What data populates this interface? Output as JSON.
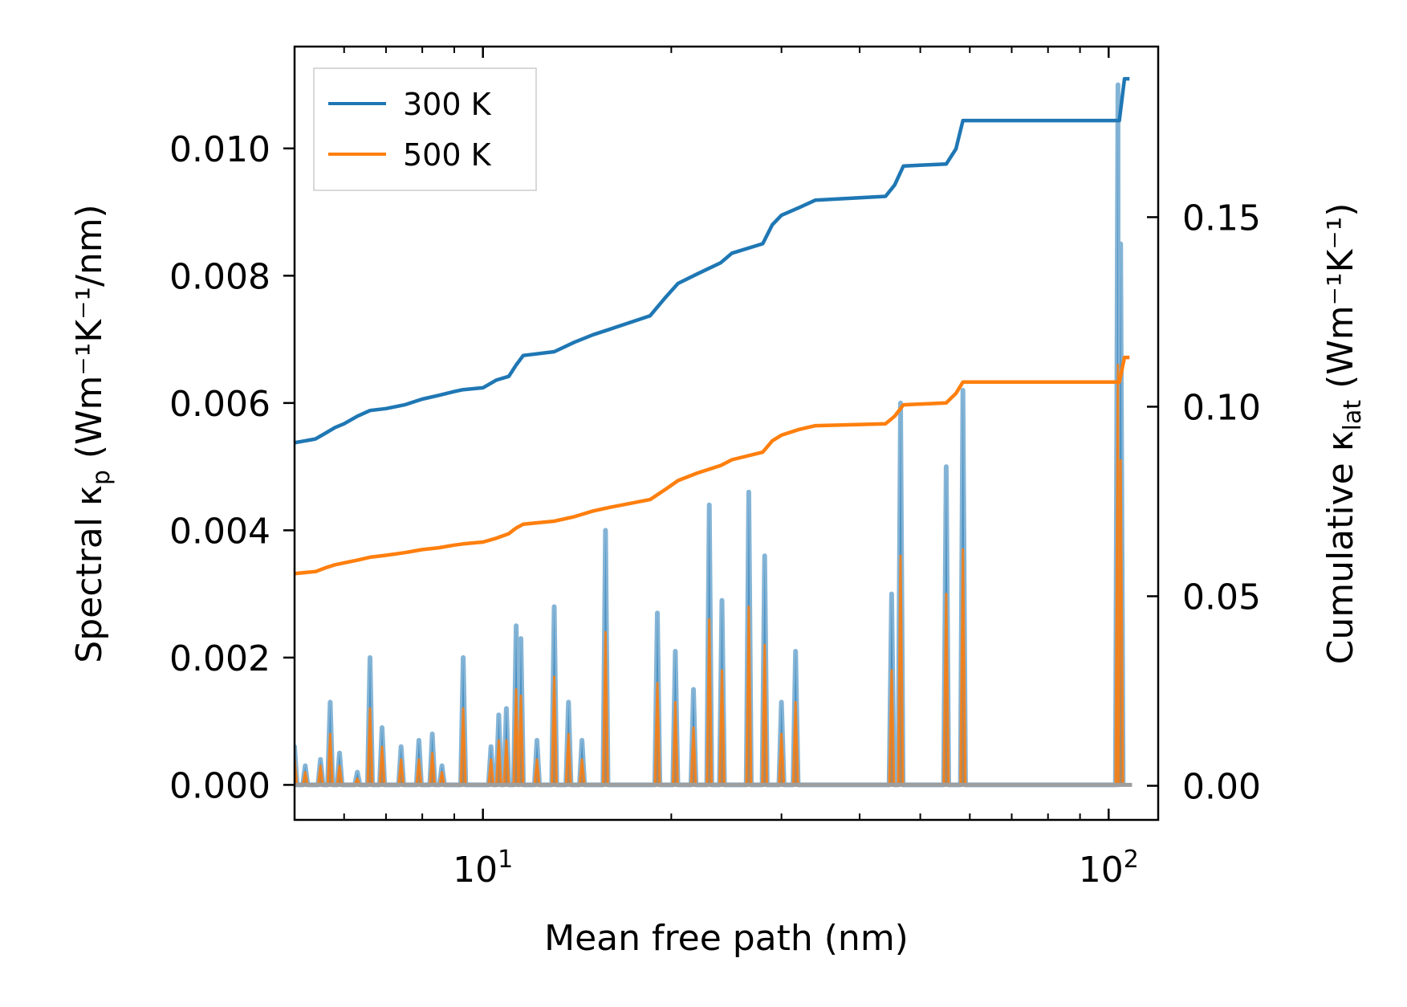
{
  "chart_data": {
    "type": "line",
    "xscale": "log",
    "xlim": [
      5.0,
      120.0
    ],
    "xlabel": "Mean free path (nm)",
    "x_tick_labels": [
      {
        "base": "10",
        "exp": "1",
        "value": 10
      },
      {
        "base": "10",
        "exp": "2",
        "value": 100
      }
    ],
    "left_axis": {
      "label_main": "Spectral κ",
      "label_sub": "p",
      "label_units": " (Wm⁻¹K⁻¹/nm)",
      "ylim": [
        -0.00055,
        0.0116
      ],
      "ticks": [
        0.0,
        0.002,
        0.004,
        0.006,
        0.008,
        0.01
      ],
      "tick_labels": [
        "0.000",
        "0.002",
        "0.004",
        "0.006",
        "0.008",
        "0.010"
      ]
    },
    "right_axis": {
      "label_main": "Cumulative κ",
      "label_sub": "lat",
      "label_units": " (Wm⁻¹K⁻¹)",
      "ylim": [
        -0.009,
        0.195
      ],
      "ticks": [
        0.0,
        0.05,
        0.1,
        0.15
      ],
      "tick_labels": [
        "0.00",
        "0.05",
        "0.10",
        "0.15"
      ]
    },
    "legend": {
      "position": "upper-left",
      "entries": [
        "300 K",
        "500 K"
      ]
    },
    "colors": {
      "300 K": "#1f77b4",
      "500 K": "#ff7f0e",
      "fill_300": "#1f77b4",
      "fill_500": "#ff7f0e"
    },
    "cumulative": [
      {
        "name": "300 K",
        "x": [
          5.0,
          5.4,
          5.6,
          5.8,
          6.0,
          6.3,
          6.6,
          7.0,
          7.5,
          8.0,
          8.5,
          9.0,
          9.3,
          10.0,
          10.5,
          11.0,
          11.3,
          11.6,
          13.0,
          14.0,
          15.0,
          16.0,
          18.5,
          19.5,
          20.5,
          22.0,
          24.0,
          25.0,
          28.0,
          29.0,
          30.0,
          32.0,
          34.0,
          44.0,
          45.5,
          47.0,
          55.0,
          57.0,
          58.5,
          104.0,
          106.0,
          108.0
        ],
        "y": [
          0.0905,
          0.0915,
          0.093,
          0.0945,
          0.0955,
          0.0975,
          0.099,
          0.0995,
          0.1005,
          0.102,
          0.103,
          0.104,
          0.1045,
          0.105,
          0.107,
          0.108,
          0.111,
          0.1135,
          0.1145,
          0.117,
          0.119,
          0.1205,
          0.124,
          0.1285,
          0.1325,
          0.135,
          0.138,
          0.1405,
          0.143,
          0.148,
          0.1505,
          0.1525,
          0.1545,
          0.1555,
          0.1585,
          0.1635,
          0.164,
          0.168,
          0.1755,
          0.1755,
          0.1865,
          0.1865
        ]
      },
      {
        "name": "500 K",
        "x": [
          5.0,
          5.4,
          5.6,
          5.8,
          6.0,
          6.3,
          6.6,
          7.0,
          7.5,
          8.0,
          8.5,
          9.0,
          9.3,
          10.0,
          10.5,
          11.0,
          11.3,
          11.6,
          13.0,
          14.0,
          15.0,
          16.0,
          18.5,
          19.5,
          20.5,
          22.0,
          24.0,
          25.0,
          28.0,
          29.0,
          30.0,
          32.0,
          34.0,
          44.0,
          45.5,
          47.0,
          55.0,
          57.0,
          58.5,
          104.0,
          106.0,
          108.0
        ],
        "y": [
          0.056,
          0.0565,
          0.0575,
          0.0583,
          0.0588,
          0.0595,
          0.0603,
          0.0608,
          0.0615,
          0.0623,
          0.0628,
          0.0635,
          0.0638,
          0.0643,
          0.0653,
          0.0665,
          0.068,
          0.069,
          0.0698,
          0.071,
          0.0725,
          0.0735,
          0.0755,
          0.078,
          0.0805,
          0.0825,
          0.0845,
          0.086,
          0.088,
          0.091,
          0.0925,
          0.094,
          0.095,
          0.0955,
          0.0975,
          0.1005,
          0.101,
          0.1035,
          0.1065,
          0.1065,
          0.113,
          0.113
        ]
      }
    ],
    "spectral": [
      {
        "name": "300 K",
        "spikes": [
          [
            5.0,
            0.0006
          ],
          [
            5.2,
            0.0003
          ],
          [
            5.5,
            0.0004
          ],
          [
            5.7,
            0.0013
          ],
          [
            5.9,
            0.0005
          ],
          [
            6.3,
            0.0002
          ],
          [
            6.6,
            0.002
          ],
          [
            6.9,
            0.0009
          ],
          [
            7.4,
            0.0006
          ],
          [
            7.9,
            0.0007
          ],
          [
            8.3,
            0.0008
          ],
          [
            8.6,
            0.0003
          ],
          [
            9.3,
            0.002
          ],
          [
            10.3,
            0.0006
          ],
          [
            10.6,
            0.0011
          ],
          [
            10.9,
            0.0012
          ],
          [
            11.3,
            0.0025
          ],
          [
            11.5,
            0.0023
          ],
          [
            12.2,
            0.0007
          ],
          [
            13.0,
            0.0028
          ],
          [
            13.7,
            0.0013
          ],
          [
            14.4,
            0.0007
          ],
          [
            15.7,
            0.004
          ],
          [
            19.0,
            0.0027
          ],
          [
            20.3,
            0.0021
          ],
          [
            21.7,
            0.0015
          ],
          [
            23.0,
            0.0044
          ],
          [
            24.1,
            0.0029
          ],
          [
            26.6,
            0.0046
          ],
          [
            28.2,
            0.0036
          ],
          [
            30.0,
            0.0013
          ],
          [
            31.6,
            0.0021
          ],
          [
            45.0,
            0.003
          ],
          [
            46.5,
            0.006
          ],
          [
            55.0,
            0.005
          ],
          [
            58.5,
            0.0062
          ],
          [
            103.5,
            0.011
          ],
          [
            104.5,
            0.0085
          ]
        ]
      },
      {
        "name": "500 K",
        "spikes": [
          [
            5.0,
            0.0004
          ],
          [
            5.2,
            0.0002
          ],
          [
            5.5,
            0.0003
          ],
          [
            5.7,
            0.0008
          ],
          [
            5.9,
            0.0003
          ],
          [
            6.3,
            0.0001
          ],
          [
            6.6,
            0.0012
          ],
          [
            6.9,
            0.0006
          ],
          [
            7.4,
            0.0004
          ],
          [
            7.9,
            0.0004
          ],
          [
            8.3,
            0.0005
          ],
          [
            8.6,
            0.0002
          ],
          [
            9.3,
            0.0012
          ],
          [
            10.3,
            0.0004
          ],
          [
            10.6,
            0.0007
          ],
          [
            10.9,
            0.0007
          ],
          [
            11.3,
            0.0015
          ],
          [
            11.5,
            0.0014
          ],
          [
            12.2,
            0.0004
          ],
          [
            13.0,
            0.0017
          ],
          [
            13.7,
            0.0008
          ],
          [
            14.4,
            0.0004
          ],
          [
            15.7,
            0.0024
          ],
          [
            19.0,
            0.0016
          ],
          [
            20.3,
            0.0013
          ],
          [
            21.7,
            0.0009
          ],
          [
            23.0,
            0.0026
          ],
          [
            24.1,
            0.0018
          ],
          [
            26.6,
            0.0028
          ],
          [
            28.2,
            0.0022
          ],
          [
            30.0,
            0.0008
          ],
          [
            31.6,
            0.0013
          ],
          [
            45.0,
            0.0018
          ],
          [
            46.5,
            0.0036
          ],
          [
            55.0,
            0.003
          ],
          [
            58.5,
            0.0037
          ],
          [
            103.5,
            0.0066
          ],
          [
            104.5,
            0.0051
          ]
        ]
      }
    ]
  }
}
